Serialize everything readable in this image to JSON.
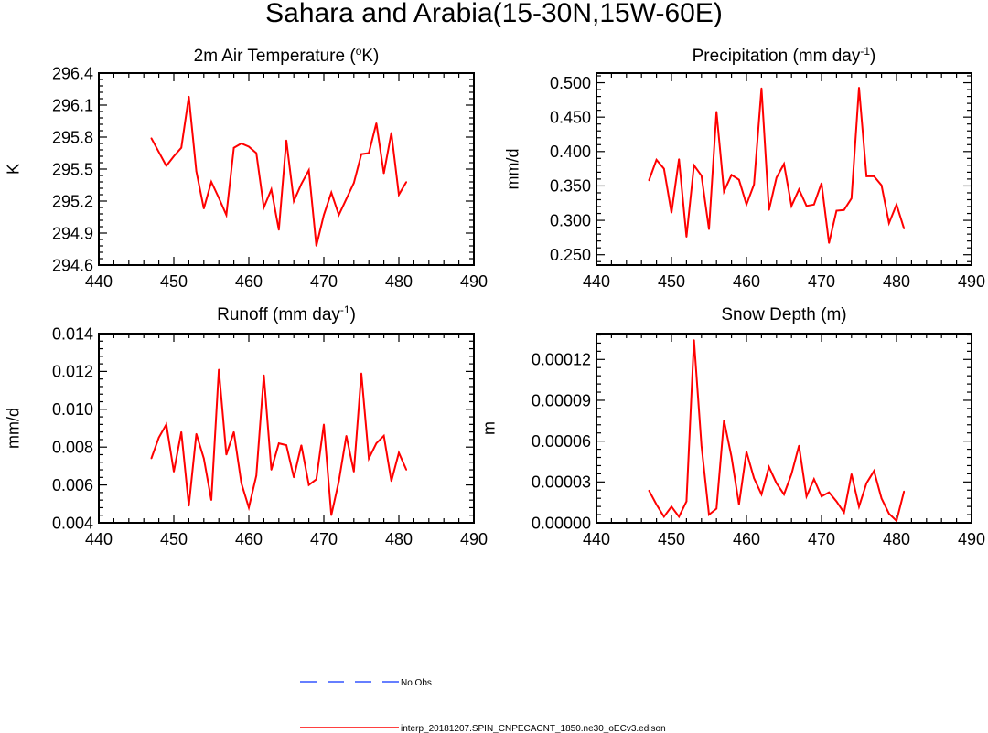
{
  "figure": {
    "title": "Sahara and Arabia(15-30N,15W-60E)"
  },
  "legend": {
    "items": [
      {
        "label": "No Obs",
        "color": "#3355ff",
        "style": "dashed"
      },
      {
        "label": "interp_20181207.SPIN_CNPECACNT_1850.ne30_oECv3.edison",
        "color": "#ff0000",
        "style": "solid"
      }
    ]
  },
  "chart_data": [
    {
      "type": "line",
      "title_main": "2m Air Temperature (",
      "title_sup": "o",
      "title_rest": "K)",
      "ylabel": "K",
      "xlim": [
        440,
        490
      ],
      "xticks": [
        440,
        450,
        460,
        470,
        480,
        490
      ],
      "ylim": [
        294.6,
        296.4
      ],
      "yticks": [
        294.6,
        294.9,
        295.2,
        295.5,
        295.8,
        296.1,
        296.4
      ],
      "ytick_labels": [
        "294.6",
        "294.9",
        "295.2",
        "295.5",
        "295.8",
        "296.1",
        "296.4"
      ],
      "series": [
        {
          "name": "interp_20181207.SPIN_CNPECACNT_1850.ne30_oECv3.edison",
          "color": "#ff0000",
          "x": [
            447,
            448,
            449,
            450,
            451,
            452,
            453,
            454,
            455,
            456,
            457,
            458,
            459,
            460,
            461,
            462,
            463,
            464,
            465,
            466,
            467,
            468,
            469,
            470,
            471,
            472,
            473,
            474,
            475,
            476,
            477,
            478,
            479,
            480,
            481
          ],
          "values": [
            295.79,
            295.66,
            295.53,
            295.62,
            295.7,
            296.18,
            295.48,
            295.13,
            295.38,
            295.23,
            295.07,
            295.7,
            295.74,
            295.71,
            295.65,
            295.14,
            295.31,
            294.93,
            295.77,
            295.2,
            295.36,
            295.49,
            294.78,
            295.07,
            295.28,
            295.07,
            295.22,
            295.37,
            295.64,
            295.65,
            295.93,
            295.46,
            295.84,
            295.26,
            295.38
          ]
        }
      ]
    },
    {
      "type": "line",
      "title_main": "Precipitation (mm day",
      "title_sup": "-1",
      "title_rest": ")",
      "ylabel": "mm/d",
      "xlim": [
        440,
        490
      ],
      "xticks": [
        440,
        450,
        460,
        470,
        480,
        490
      ],
      "ylim": [
        0.235,
        0.514
      ],
      "yticks": [
        0.25,
        0.3,
        0.35,
        0.4,
        0.45,
        0.5
      ],
      "ytick_labels": [
        "0.250",
        "0.300",
        "0.350",
        "0.400",
        "0.450",
        "0.500"
      ],
      "series": [
        {
          "name": "interp_20181207.SPIN_CNPECACNT_1850.ne30_oECv3.edison",
          "color": "#ff0000",
          "x": [
            447,
            448,
            449,
            450,
            451,
            452,
            453,
            454,
            455,
            456,
            457,
            458,
            459,
            460,
            461,
            462,
            463,
            464,
            465,
            466,
            467,
            468,
            469,
            470,
            471,
            472,
            473,
            474,
            475,
            476,
            477,
            478,
            479,
            480,
            481
          ],
          "values": [
            0.358,
            0.388,
            0.375,
            0.311,
            0.389,
            0.276,
            0.38,
            0.365,
            0.287,
            0.458,
            0.342,
            0.366,
            0.359,
            0.323,
            0.352,
            0.492,
            0.315,
            0.362,
            0.382,
            0.321,
            0.345,
            0.321,
            0.323,
            0.354,
            0.267,
            0.314,
            0.315,
            0.332,
            0.493,
            0.364,
            0.364,
            0.351,
            0.296,
            0.323,
            0.288
          ]
        }
      ]
    },
    {
      "type": "line",
      "title_main": "Runoff (mm day",
      "title_sup": "-1",
      "title_rest": ")",
      "ylabel": "mm/d",
      "xlim": [
        440,
        490
      ],
      "xticks": [
        440,
        450,
        460,
        470,
        480,
        490
      ],
      "ylim": [
        0.004,
        0.014
      ],
      "yticks": [
        0.004,
        0.006,
        0.008,
        0.01,
        0.012,
        0.014
      ],
      "ytick_labels": [
        "0.004",
        "0.006",
        "0.008",
        "0.010",
        "0.012",
        "0.014"
      ],
      "series": [
        {
          "name": "interp_20181207.SPIN_CNPECACNT_1850.ne30_oECv3.edison",
          "color": "#ff0000",
          "x": [
            447,
            448,
            449,
            450,
            451,
            452,
            453,
            454,
            455,
            456,
            457,
            458,
            459,
            460,
            461,
            462,
            463,
            464,
            465,
            466,
            467,
            468,
            469,
            470,
            471,
            472,
            473,
            474,
            475,
            476,
            477,
            478,
            479,
            480,
            481
          ],
          "values": [
            0.0074,
            0.0085,
            0.0092,
            0.0067,
            0.0088,
            0.0049,
            0.0087,
            0.0074,
            0.0052,
            0.0121,
            0.0076,
            0.0088,
            0.0061,
            0.0048,
            0.0065,
            0.0118,
            0.0068,
            0.0082,
            0.0081,
            0.0064,
            0.0081,
            0.006,
            0.0063,
            0.0092,
            0.0044,
            0.0062,
            0.0086,
            0.0067,
            0.0119,
            0.0074,
            0.0082,
            0.0086,
            0.0062,
            0.0077,
            0.0068
          ]
        }
      ]
    },
    {
      "type": "line",
      "title_main": "Snow Depth (m)",
      "title_sup": "",
      "title_rest": "",
      "ylabel": "m",
      "xlim": [
        440,
        490
      ],
      "xticks": [
        440,
        450,
        460,
        470,
        480,
        490
      ],
      "ylim": [
        0.0,
        0.000139
      ],
      "yticks": [
        0.0,
        3e-05,
        6e-05,
        9e-05,
        0.00012
      ],
      "ytick_labels": [
        "0.00000",
        "0.00003",
        "0.00006",
        "0.00009",
        "0.00012"
      ],
      "series": [
        {
          "name": "interp_20181207.SPIN_CNPECACNT_1850.ne30_oECv3.edison",
          "color": "#ff0000",
          "x": [
            447,
            448,
            449,
            450,
            451,
            452,
            453,
            454,
            455,
            456,
            457,
            458,
            459,
            460,
            461,
            462,
            463,
            464,
            465,
            466,
            467,
            468,
            469,
            470,
            471,
            472,
            473,
            474,
            475,
            476,
            477,
            478,
            479,
            480,
            481
          ],
          "values": [
            2.37e-05,
            1.34e-05,
            4.5e-06,
            1.19e-05,
            4.5e-06,
            1.57e-05,
            0.0001343,
            5.67e-05,
            6e-06,
            1.04e-05,
            7.53e-05,
            4.85e-05,
            1.34e-05,
            5.22e-05,
            3.28e-05,
            2.09e-05,
            4.1e-05,
            2.91e-05,
            2.09e-05,
            3.58e-05,
            5.67e-05,
            1.94e-05,
            3.21e-05,
            1.94e-05,
            2.24e-05,
            1.57e-05,
            7.5e-06,
            3.58e-05,
            1.19e-05,
            2.91e-05,
            3.81e-05,
            1.79e-05,
            6.7e-06,
            1.5e-06,
            2.31e-05
          ]
        }
      ]
    }
  ]
}
